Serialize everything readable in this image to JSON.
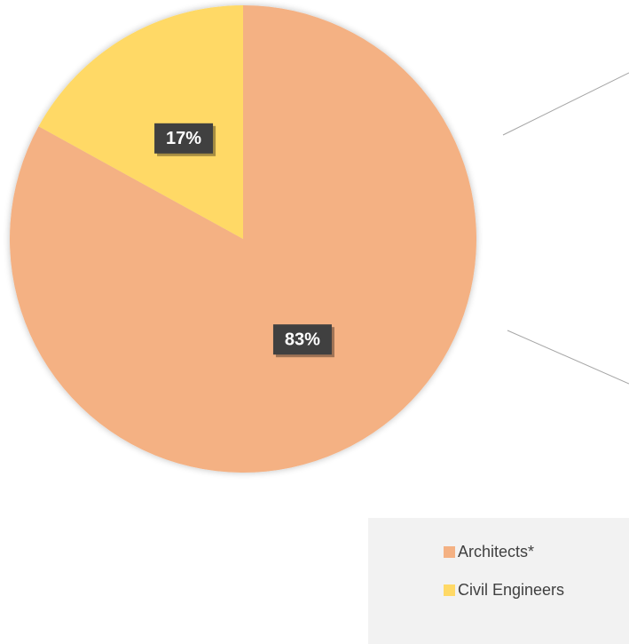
{
  "chart_data": {
    "type": "pie",
    "categories": [
      "Architects*",
      "Civil Engineers"
    ],
    "values": [
      83,
      17
    ],
    "value_labels": [
      "83%",
      "17%"
    ],
    "colors": [
      "#f4b183",
      "#ffd966"
    ],
    "legend": "bottom-right"
  }
}
